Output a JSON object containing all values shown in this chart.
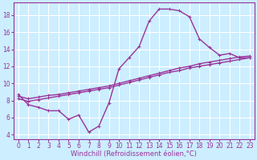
{
  "xlabel": "Windchill (Refroidissement éolien,°C)",
  "bg_color": "#cceeff",
  "grid_color": "#ffffff",
  "line_color": "#993399",
  "xticks": [
    0,
    1,
    2,
    3,
    4,
    5,
    6,
    7,
    8,
    9,
    10,
    11,
    12,
    13,
    14,
    15,
    16,
    17,
    18,
    19,
    20,
    21,
    22,
    23
  ],
  "yticks": [
    4,
    6,
    8,
    10,
    12,
    14,
    16,
    18
  ],
  "xlim": [
    -0.5,
    23.5
  ],
  "ylim": [
    3.5,
    19.5
  ],
  "line1_x": [
    0,
    1,
    2,
    3,
    4,
    5,
    6,
    7,
    8,
    9,
    10,
    11,
    12,
    13,
    14,
    15,
    16,
    17,
    18,
    19,
    20,
    21,
    22,
    23
  ],
  "line1_y": [
    8.7,
    7.5,
    7.2,
    6.8,
    6.8,
    5.8,
    6.3,
    4.3,
    5.0,
    7.7,
    11.7,
    13.0,
    14.3,
    17.3,
    18.7,
    18.7,
    18.5,
    17.8,
    15.2,
    14.2,
    13.3,
    13.5,
    13.0,
    13.0
  ],
  "line2_x": [
    0,
    1,
    2,
    3,
    4,
    5,
    6,
    7,
    8,
    9,
    10,
    11,
    12,
    13,
    14,
    15,
    16,
    17,
    18,
    19,
    20,
    21,
    22,
    23
  ],
  "line2_y": [
    8.5,
    8.2,
    8.4,
    8.6,
    8.7,
    8.9,
    9.1,
    9.3,
    9.5,
    9.7,
    10.0,
    10.3,
    10.6,
    10.9,
    11.2,
    11.5,
    11.8,
    12.0,
    12.3,
    12.5,
    12.7,
    12.9,
    13.1,
    13.2
  ],
  "line3_x": [
    0,
    1,
    2,
    3,
    4,
    5,
    6,
    7,
    8,
    9,
    10,
    11,
    12,
    13,
    14,
    15,
    16,
    17,
    18,
    19,
    20,
    21,
    22,
    23
  ],
  "line3_y": [
    8.2,
    7.9,
    8.1,
    8.3,
    8.5,
    8.7,
    8.9,
    9.1,
    9.3,
    9.5,
    9.8,
    10.1,
    10.4,
    10.7,
    11.0,
    11.3,
    11.5,
    11.8,
    12.0,
    12.2,
    12.4,
    12.6,
    12.8,
    13.0
  ],
  "marker_size": 2.5,
  "line_width": 1.0,
  "xlabel_fontsize": 6,
  "tick_fontsize": 5.5
}
